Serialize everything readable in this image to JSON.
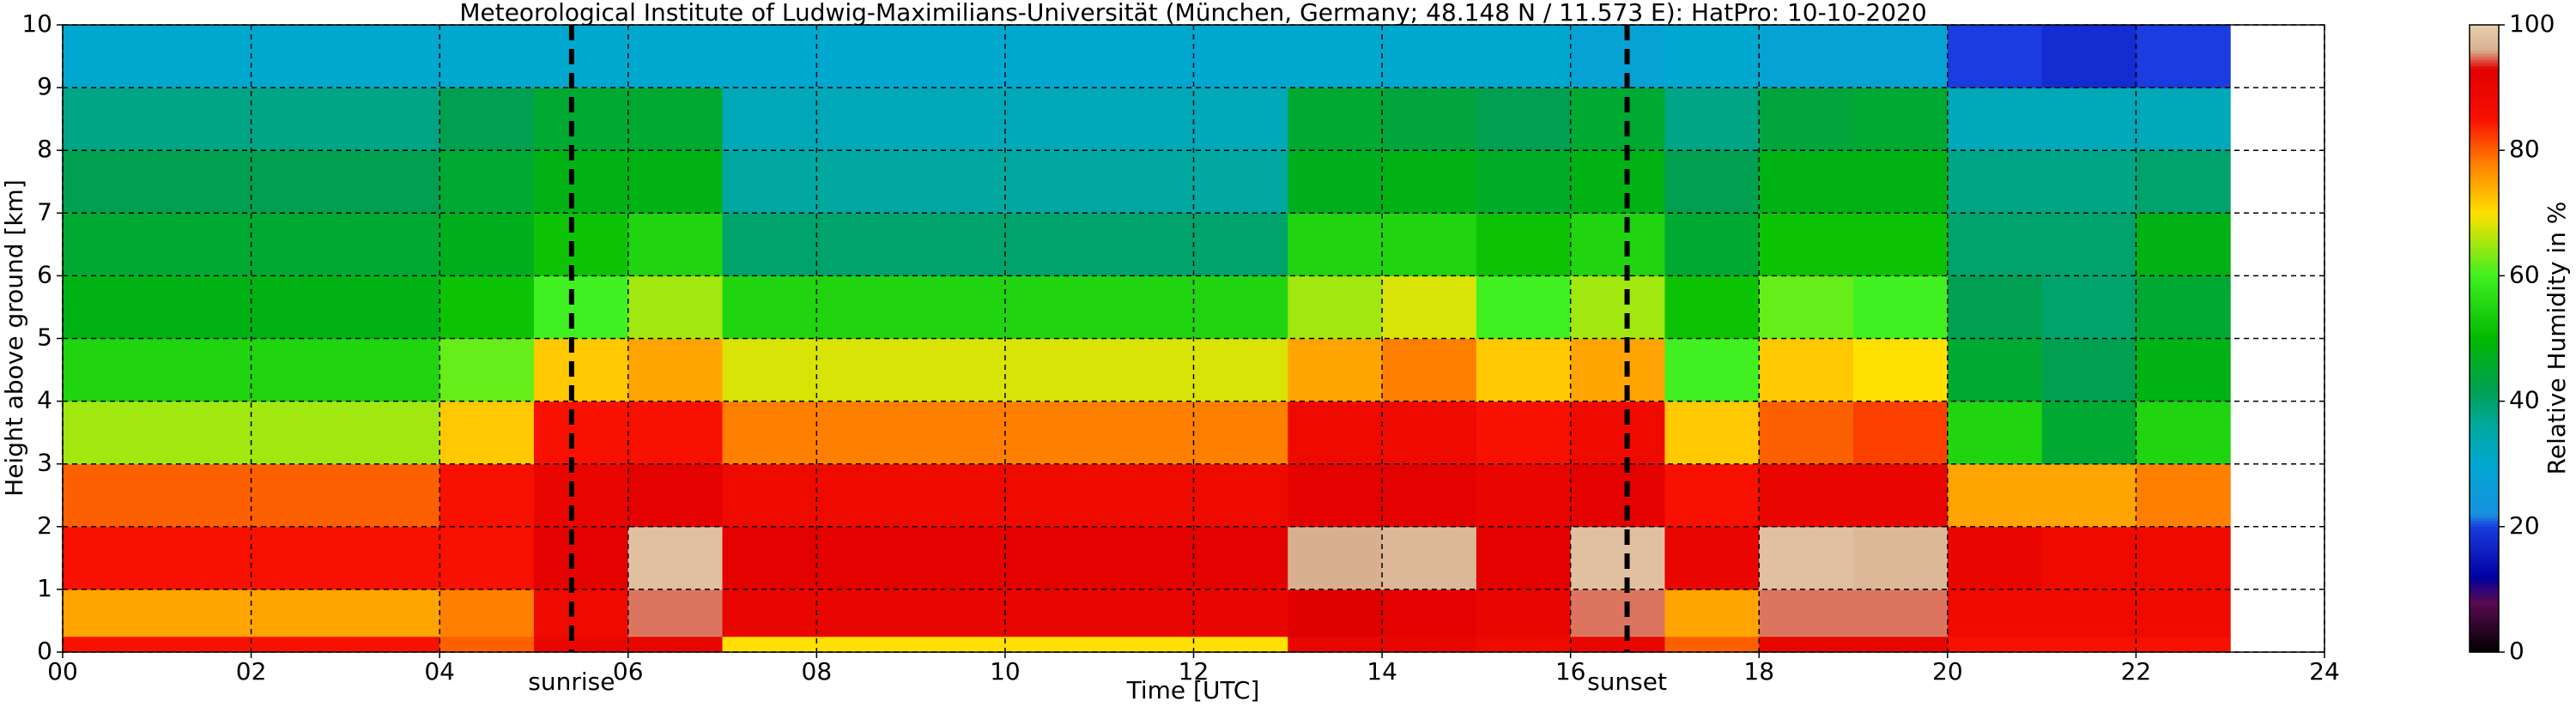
{
  "chart_data": {
    "type": "heatmap",
    "title": "Meteorological Institute of Ludwig-Maximilians-Universität (München, Germany; 48.148 N / 11.573 E):    HatPro: 10-10-2020",
    "x_label": "Time [UTC]",
    "y_label": "Height above ground [km]",
    "xlim": [
      0,
      24
    ],
    "ylim": [
      0,
      10
    ],
    "xticks": [
      {
        "value": 0,
        "label": "00"
      },
      {
        "value": 2,
        "label": "02"
      },
      {
        "value": 4,
        "label": "04"
      },
      {
        "value": 6,
        "label": "06"
      },
      {
        "value": 8,
        "label": "08"
      },
      {
        "value": 10,
        "label": "10"
      },
      {
        "value": 12,
        "label": "12"
      },
      {
        "value": 14,
        "label": "14"
      },
      {
        "value": 16,
        "label": "16"
      },
      {
        "value": 18,
        "label": "18"
      },
      {
        "value": 20,
        "label": "20"
      },
      {
        "value": 22,
        "label": "22"
      },
      24
    ],
    "yticks": [
      0,
      1,
      2,
      3,
      4,
      5,
      6,
      7,
      8,
      9,
      10
    ],
    "grid": true,
    "x_edges": [
      0,
      1,
      2,
      3,
      4,
      5,
      6,
      7,
      8,
      9,
      10,
      11,
      12,
      13,
      14,
      15,
      16,
      17,
      18,
      19,
      20,
      21,
      22,
      23
    ],
    "y_edges": [
      0,
      0.25,
      1,
      2,
      3,
      4,
      5,
      6,
      7,
      8,
      9,
      10
    ],
    "values": [
      [
        85,
        75,
        85,
        80,
        65,
        55,
        48,
        45,
        42,
        38,
        30
      ],
      [
        85,
        75,
        85,
        80,
        65,
        55,
        48,
        45,
        42,
        38,
        30
      ],
      [
        85,
        75,
        85,
        80,
        65,
        55,
        48,
        45,
        42,
        38,
        30
      ],
      [
        85,
        75,
        85,
        80,
        65,
        55,
        48,
        45,
        42,
        38,
        30
      ],
      [
        80,
        78,
        85,
        85,
        72,
        62,
        52,
        47,
        45,
        42,
        30
      ],
      [
        90,
        88,
        92,
        90,
        85,
        72,
        60,
        52,
        48,
        45,
        30
      ],
      [
        90,
        95,
        98,
        92,
        85,
        75,
        65,
        55,
        48,
        45,
        30
      ],
      [
        70,
        90,
        92,
        88,
        78,
        68,
        55,
        40,
        36,
        33,
        30
      ],
      [
        70,
        90,
        92,
        88,
        78,
        68,
        55,
        40,
        36,
        33,
        30
      ],
      [
        70,
        90,
        92,
        88,
        78,
        68,
        55,
        40,
        36,
        33,
        30
      ],
      [
        70,
        90,
        92,
        88,
        78,
        68,
        55,
        40,
        36,
        33,
        30
      ],
      [
        70,
        90,
        92,
        88,
        78,
        68,
        55,
        40,
        36,
        33,
        30
      ],
      [
        70,
        90,
        92,
        88,
        78,
        68,
        55,
        40,
        36,
        33,
        30
      ],
      [
        90,
        93,
        96,
        92,
        88,
        75,
        65,
        55,
        47,
        45,
        30
      ],
      [
        90,
        92,
        97,
        92,
        88,
        78,
        68,
        55,
        48,
        44,
        30
      ],
      [
        88,
        90,
        92,
        90,
        85,
        72,
        60,
        52,
        46,
        42,
        30
      ],
      [
        90,
        95,
        98,
        92,
        88,
        75,
        65,
        55,
        48,
        45,
        28
      ],
      [
        80,
        75,
        90,
        85,
        72,
        60,
        52,
        45,
        42,
        38,
        30
      ],
      [
        90,
        95,
        98,
        90,
        80,
        72,
        62,
        52,
        48,
        44,
        28
      ],
      [
        90,
        95,
        97,
        90,
        82,
        70,
        60,
        52,
        48,
        45,
        28
      ],
      [
        85,
        88,
        90,
        75,
        55,
        45,
        42,
        40,
        38,
        33,
        20
      ],
      [
        85,
        88,
        88,
        75,
        45,
        42,
        40,
        40,
        38,
        33,
        18
      ],
      [
        85,
        88,
        88,
        78,
        55,
        48,
        45,
        48,
        40,
        33,
        20
      ]
    ],
    "annotations": [
      {
        "text": "sunrise",
        "x": 5.4
      },
      {
        "text": "sunset",
        "x": 16.6
      }
    ],
    "colorbar": {
      "label": "Relative Humidity in %",
      "lim": [
        0,
        100
      ],
      "ticks": [
        0,
        20,
        40,
        60,
        80,
        100
      ]
    },
    "colormap": [
      {
        "value": 0,
        "color": "#000000"
      },
      {
        "value": 8,
        "color": "#5a0a50"
      },
      {
        "value": 12,
        "color": "#0000a0"
      },
      {
        "value": 20,
        "color": "#1a3ce0"
      },
      {
        "value": 22,
        "color": "#1890e0"
      },
      {
        "value": 30,
        "color": "#00a8d0"
      },
      {
        "value": 36,
        "color": "#00a8a0"
      },
      {
        "value": 42,
        "color": "#00a050"
      },
      {
        "value": 50,
        "color": "#00b800"
      },
      {
        "value": 60,
        "color": "#40f020"
      },
      {
        "value": 70,
        "color": "#ffe000"
      },
      {
        "value": 78,
        "color": "#ff8000"
      },
      {
        "value": 85,
        "color": "#f81000"
      },
      {
        "value": 93,
        "color": "#e00000"
      },
      {
        "value": 96,
        "color": "#d8b090"
      },
      {
        "value": 100,
        "color": "#e8d0b0"
      }
    ]
  }
}
